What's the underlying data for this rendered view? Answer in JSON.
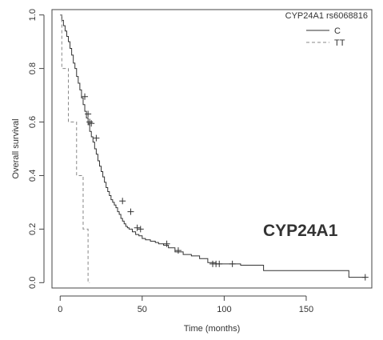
{
  "chart_data": {
    "type": "line",
    "subtype": "kaplan-meier",
    "xlabel": "Time (months)",
    "ylabel": "Overall survival",
    "xlim": [
      -5,
      190
    ],
    "ylim": [
      -0.02,
      1.02
    ],
    "xticks": [
      0,
      50,
      100,
      150
    ],
    "yticks": [
      0.0,
      0.2,
      0.4,
      0.6,
      0.8,
      1.0
    ],
    "xtick_labels": [
      "0",
      "50",
      "100",
      "150"
    ],
    "ytick_labels": [
      "0.0",
      "0.2",
      "0.4",
      "0.6",
      "0.8",
      "1.0"
    ],
    "grid": false,
    "legend": {
      "title": "CYP24A1 rs6068816",
      "position": "top-right",
      "entries": [
        {
          "label": "C",
          "linestyle": "solid"
        },
        {
          "label": "TT",
          "linestyle": "dashed"
        }
      ]
    },
    "annotation": {
      "text": "CYP24A1",
      "color": "#e8336a",
      "position": "bottom-right"
    },
    "series": [
      {
        "name": "C",
        "linestyle": "solid",
        "color": "#333333",
        "x": [
          0,
          1,
          2,
          3,
          4,
          5,
          6,
          7,
          8,
          9,
          10,
          11,
          12,
          13,
          14,
          15,
          16,
          17,
          18,
          19,
          20,
          21,
          22,
          23,
          24,
          25,
          26,
          27,
          28,
          29,
          30,
          31,
          32,
          33,
          34,
          35,
          36,
          37,
          38,
          39,
          40,
          41,
          42,
          44,
          46,
          48,
          50,
          52,
          55,
          58,
          60,
          63,
          66,
          70,
          75,
          80,
          85,
          90,
          95,
          100,
          105,
          110,
          124,
          176,
          186
        ],
        "y": [
          1.0,
          0.98,
          0.96,
          0.94,
          0.92,
          0.9,
          0.875,
          0.85,
          0.82,
          0.8,
          0.77,
          0.745,
          0.72,
          0.69,
          0.665,
          0.64,
          0.615,
          0.59,
          0.565,
          0.545,
          0.525,
          0.5,
          0.48,
          0.455,
          0.435,
          0.415,
          0.395,
          0.375,
          0.355,
          0.34,
          0.325,
          0.31,
          0.3,
          0.29,
          0.28,
          0.265,
          0.255,
          0.24,
          0.23,
          0.22,
          0.21,
          0.205,
          0.2,
          0.19,
          0.18,
          0.175,
          0.165,
          0.16,
          0.155,
          0.15,
          0.145,
          0.14,
          0.13,
          0.115,
          0.105,
          0.1,
          0.09,
          0.075,
          0.07,
          0.07,
          0.07,
          0.065,
          0.045,
          0.02,
          0.02
        ],
        "censored": [
          [
            15,
            0.695
          ],
          [
            17,
            0.63
          ],
          [
            18,
            0.6
          ],
          [
            19,
            0.595
          ],
          [
            22,
            0.54
          ],
          [
            38,
            0.305
          ],
          [
            43,
            0.265
          ],
          [
            47,
            0.205
          ],
          [
            49,
            0.2
          ],
          [
            65,
            0.145
          ],
          [
            72,
            0.12
          ],
          [
            93,
            0.07
          ],
          [
            95,
            0.07
          ],
          [
            97,
            0.07
          ],
          [
            105,
            0.07
          ],
          [
            186,
            0.02
          ]
        ]
      },
      {
        "name": "TT",
        "linestyle": "dashed",
        "color": "#888888",
        "x": [
          0,
          1,
          5,
          10,
          14,
          17,
          18
        ],
        "y": [
          1.0,
          0.8,
          0.6,
          0.4,
          0.2,
          0.0,
          0.0
        ],
        "censored": []
      }
    ]
  }
}
